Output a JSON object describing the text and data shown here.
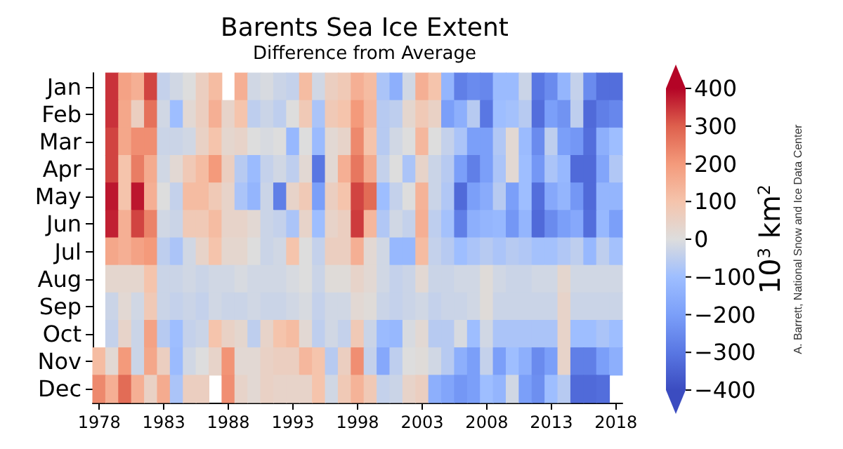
{
  "chart_data": {
    "type": "heatmap",
    "title": "Barents Sea Ice Extent",
    "subtitle": "Difference from Average",
    "categories": [
      "1978",
      null,
      null,
      null,
      null,
      "1983",
      null,
      null,
      null,
      null,
      "1988",
      null,
      null,
      null,
      null,
      "1993",
      null,
      null,
      null,
      null,
      "1998",
      null,
      null,
      null,
      null,
      "2003",
      null,
      null,
      null,
      null,
      "2008",
      null,
      null,
      null,
      null,
      "2013",
      null,
      null,
      null,
      null,
      "2018"
    ],
    "y_categories": [
      "Jan",
      "Feb",
      "Mar",
      "Apr",
      "May",
      "Jun",
      "Jul",
      "Aug",
      "Sep",
      "Oct",
      "Nov",
      "Dec"
    ],
    "cells": [
      [
        null,
        350,
        180,
        150,
        330,
        -40,
        -20,
        0,
        60,
        120,
        null,
        150,
        -20,
        -10,
        -30,
        -40,
        120,
        -20,
        60,
        80,
        150,
        120,
        -80,
        -150,
        -20,
        150,
        100,
        -130,
        -280,
        -250,
        -260,
        -110,
        -110,
        -30,
        -300,
        -250,
        -130,
        -40,
        -250,
        -320,
        -320
      ],
      [
        null,
        350,
        170,
        60,
        270,
        -20,
        -100,
        20,
        60,
        150,
        40,
        100,
        -50,
        -30,
        -50,
        0,
        80,
        -80,
        80,
        100,
        200,
        130,
        -60,
        -50,
        30,
        80,
        50,
        -200,
        -150,
        -60,
        -300,
        -100,
        -90,
        -60,
        -320,
        -200,
        -230,
        -50,
        -330,
        -280,
        -260
      ],
      [
        null,
        330,
        170,
        220,
        220,
        -30,
        -30,
        -20,
        50,
        100,
        30,
        40,
        0,
        -10,
        0,
        -120,
        0,
        -110,
        20,
        40,
        230,
        100,
        -60,
        -20,
        0,
        130,
        0,
        -40,
        -80,
        -200,
        -200,
        -70,
        20,
        -110,
        -250,
        -50,
        -200,
        -220,
        -320,
        -150,
        -100
      ],
      [
        null,
        330,
        100,
        250,
        160,
        -20,
        20,
        80,
        120,
        200,
        60,
        -60,
        -110,
        -40,
        -20,
        -50,
        20,
        -300,
        20,
        150,
        260,
        160,
        -40,
        0,
        -80,
        40,
        -30,
        -60,
        -200,
        -280,
        -200,
        -80,
        20,
        -100,
        -220,
        -80,
        -120,
        -330,
        -330,
        -180,
        -70
      ],
      [
        null,
        380,
        100,
        380,
        150,
        0,
        -40,
        120,
        120,
        80,
        40,
        -80,
        -130,
        -30,
        -280,
        40,
        80,
        -200,
        60,
        100,
        330,
        280,
        -100,
        -40,
        0,
        140,
        -30,
        -70,
        -330,
        -200,
        -160,
        -60,
        -200,
        -100,
        -320,
        -170,
        -130,
        -220,
        -330,
        -130,
        -130
      ],
      [
        null,
        370,
        150,
        330,
        240,
        -20,
        -30,
        80,
        80,
        120,
        40,
        40,
        20,
        -30,
        -40,
        -80,
        40,
        -100,
        40,
        60,
        340,
        130,
        -70,
        -20,
        -40,
        150,
        -50,
        -90,
        -280,
        -150,
        -130,
        -120,
        -220,
        -130,
        -330,
        -250,
        -200,
        -170,
        -320,
        -120,
        -200
      ],
      [
        null,
        170,
        150,
        180,
        200,
        -50,
        -80,
        -20,
        40,
        100,
        30,
        30,
        0,
        -30,
        -20,
        100,
        0,
        -40,
        60,
        60,
        150,
        20,
        -20,
        -120,
        -120,
        120,
        -40,
        -60,
        -100,
        -80,
        -60,
        -80,
        -60,
        -70,
        -90,
        -90,
        -70,
        -50,
        -120,
        -50,
        -90
      ],
      [
        null,
        30,
        30,
        30,
        100,
        -30,
        -30,
        -20,
        -30,
        -20,
        -20,
        -10,
        -20,
        -20,
        -20,
        -10,
        0,
        -30,
        10,
        10,
        40,
        20,
        -20,
        -40,
        -30,
        20,
        -30,
        -30,
        -20,
        -20,
        10,
        -20,
        -30,
        -30,
        -20,
        -20,
        30,
        -20,
        -20,
        -20,
        -20
      ],
      [
        null,
        -30,
        20,
        -20,
        80,
        -30,
        -40,
        -30,
        -40,
        -20,
        -30,
        -30,
        -20,
        -30,
        -30,
        -20,
        -10,
        -40,
        -20,
        -20,
        20,
        10,
        -30,
        -40,
        -30,
        -20,
        -40,
        -30,
        -30,
        -20,
        10,
        -30,
        -30,
        -30,
        -30,
        -30,
        40,
        -30,
        -30,
        -30,
        -30
      ],
      [
        null,
        -40,
        40,
        -30,
        180,
        -60,
        -100,
        -40,
        -30,
        100,
        50,
        30,
        -50,
        40,
        100,
        120,
        20,
        -50,
        -20,
        -40,
        80,
        -30,
        -110,
        -120,
        -10,
        20,
        -60,
        -60,
        -10,
        -100,
        -20,
        -80,
        -80,
        -80,
        -80,
        -80,
        40,
        -100,
        -100,
        -80,
        -100
      ],
      [
        120,
        20,
        200,
        -30,
        170,
        60,
        -110,
        -20,
        0,
        40,
        210,
        20,
        20,
        50,
        60,
        60,
        130,
        100,
        -60,
        60,
        220,
        -40,
        -170,
        -50,
        0,
        10,
        -20,
        -60,
        -150,
        -200,
        -40,
        -200,
        -100,
        -150,
        -250,
        -200,
        40,
        -280,
        -280,
        -200,
        -150
      ],
      [
        230,
        150,
        280,
        150,
        50,
        160,
        -80,
        60,
        60,
        null,
        220,
        40,
        20,
        50,
        40,
        40,
        40,
        100,
        -20,
        80,
        140,
        80,
        -40,
        -30,
        40,
        60,
        -150,
        -180,
        -220,
        -200,
        -100,
        -130,
        -20,
        -200,
        -240,
        -100,
        -60,
        -330,
        -330,
        -320,
        null
      ]
    ],
    "clim": [
      -400,
      400
    ],
    "cticks": [
      -400,
      -300,
      -200,
      -100,
      0,
      100,
      200,
      300,
      400
    ],
    "clabel": "10$^{3}$ km$^{2}$",
    "annotations": [
      "A. Barrett, National Snow and Ice Data Center"
    ]
  }
}
